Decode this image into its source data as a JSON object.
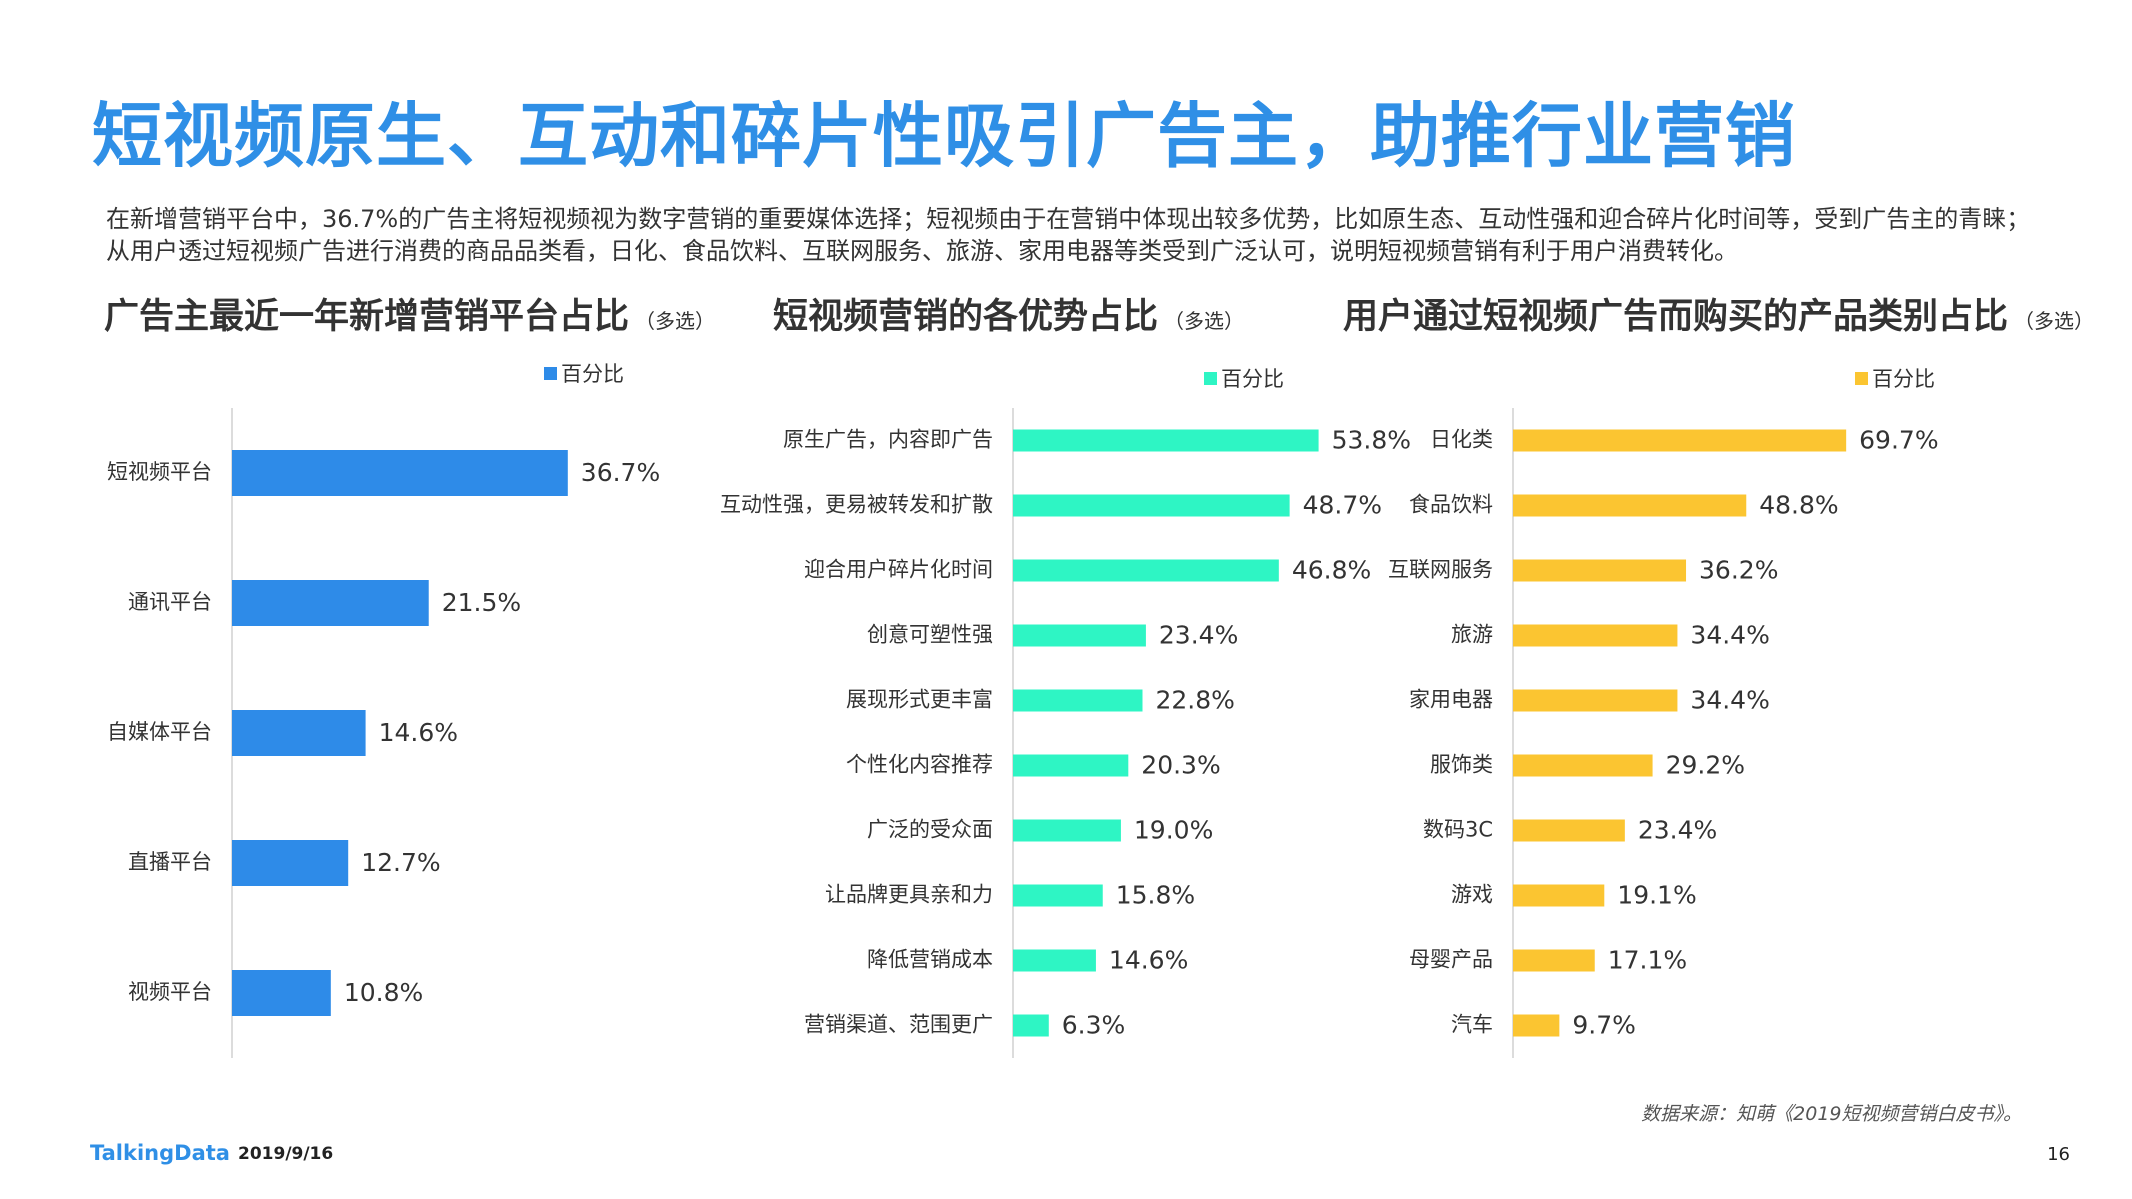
{
  "page": {
    "title": "短视频原生、互动和碎片性吸引广告主，助推行业营销",
    "intro": "在新增营销平台中，36.7%的广告主将短视频视为数字营销的重要媒体选择；短视频由于在营销中体现出较多优势，比如原生态、互动性强和迎合碎片化时间等，受到广告主的青睐；从用户透过短视频广告进行消费的商品品类看，日化、食品饮料、互联网服务、旅游、家用电器等类受到广泛认可，说明短视频营销有利于用户消费转化。",
    "source": "数据来源：知萌《2019短视频营销白皮书》。",
    "brand": "TalkingData",
    "date": "2019/9/16",
    "page_number": "16"
  },
  "chart_data": [
    {
      "type": "bar",
      "orientation": "horizontal",
      "title": "广告主最近一年新增营销平台占比",
      "title_note": "（多选）",
      "legend": "百分比",
      "color": "#2e8be8",
      "categories": [
        "短视频平台",
        "通讯平台",
        "自媒体平台",
        "直播平台",
        "视频平台"
      ],
      "values": [
        36.7,
        21.5,
        14.6,
        12.7,
        10.8
      ],
      "value_labels": [
        "36.7%",
        "21.5%",
        "14.6%",
        "12.7%",
        "10.8%"
      ],
      "xlim": [
        0,
        100
      ],
      "grid": false
    },
    {
      "type": "bar",
      "orientation": "horizontal",
      "title": "短视频营销的各优势占比",
      "title_note": "（多选）",
      "legend": "百分比",
      "color": "#2ef5c4",
      "categories": [
        "原生广告，内容即广告",
        "互动性强，更易被转发和扩散",
        "迎合用户碎片化时间",
        "创意可塑性强",
        "展现形式更丰富",
        "个性化内容推荐",
        "广泛的受众面",
        "让品牌更具亲和力",
        "降低营销成本",
        "营销渠道、范围更广"
      ],
      "values": [
        53.8,
        48.7,
        46.8,
        23.4,
        22.8,
        20.3,
        19.0,
        15.8,
        14.6,
        6.3
      ],
      "value_labels": [
        "53.8%",
        "48.7%",
        "46.8%",
        "23.4%",
        "22.8%",
        "20.3%",
        "19.0%",
        "15.8%",
        "14.6%",
        "6.3%"
      ],
      "xlim": [
        0,
        100
      ],
      "grid": false
    },
    {
      "type": "bar",
      "orientation": "horizontal",
      "title": "用户通过短视频广告而购买的产品类别占比",
      "title_note": "（多选）",
      "legend": "百分比",
      "color": "#fbc531",
      "categories": [
        "日化类",
        "食品饮料",
        "互联网服务",
        "旅游",
        "家用电器",
        "服饰类",
        "数码3C",
        "游戏",
        "母婴产品",
        "汽车"
      ],
      "values": [
        69.7,
        48.8,
        36.2,
        34.4,
        34.4,
        29.2,
        23.4,
        19.1,
        17.1,
        9.7
      ],
      "value_labels": [
        "69.7%",
        "48.8%",
        "36.2%",
        "34.4%",
        "34.4%",
        "29.2%",
        "23.4%",
        "19.1%",
        "17.1%",
        "9.7%"
      ],
      "xlim": [
        0,
        100
      ],
      "grid": false
    }
  ]
}
